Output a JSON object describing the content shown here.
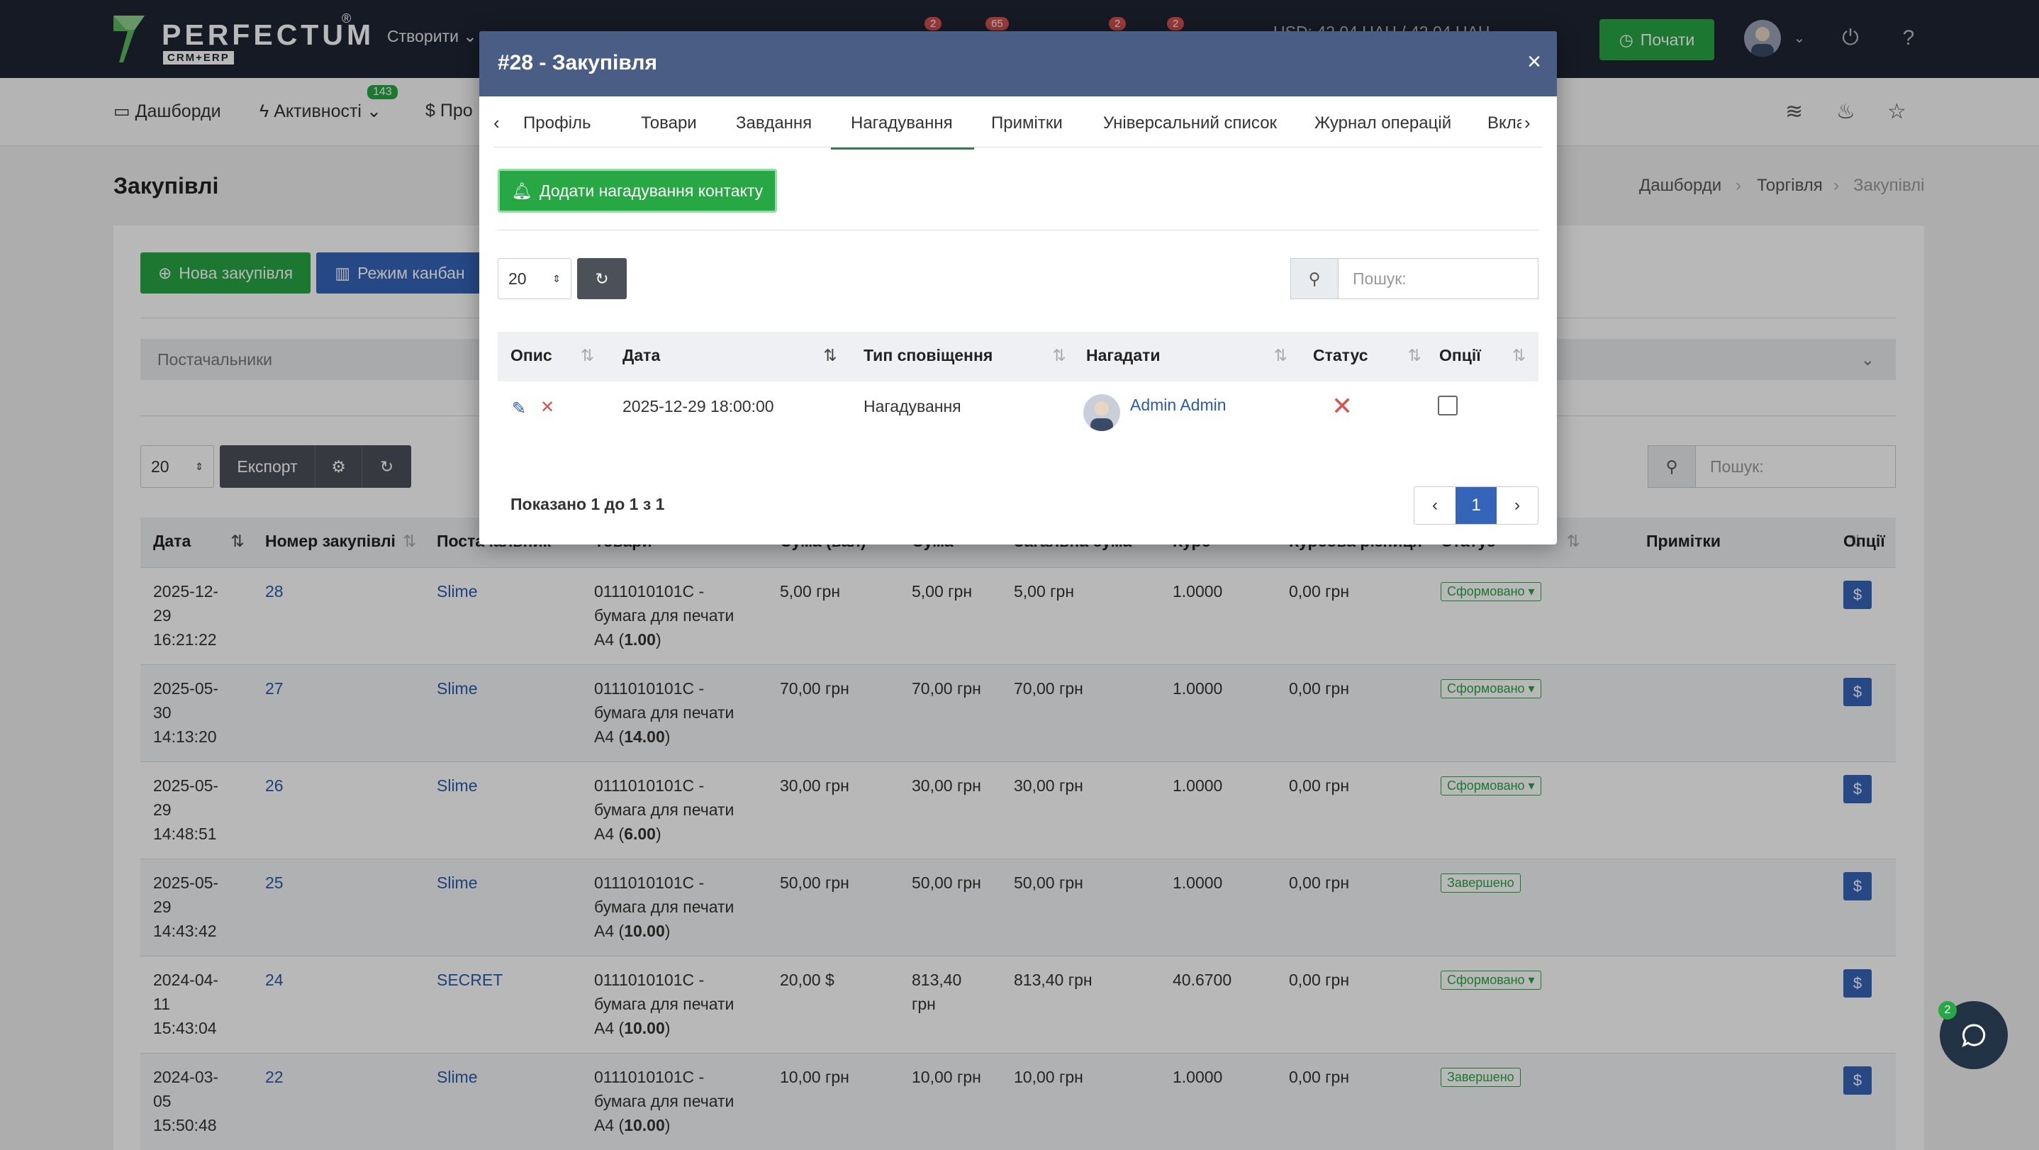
{
  "topbar": {
    "logo_text": "PERFECTUM",
    "logo_sub": "CRM+ERP",
    "create_label": "Створити",
    "badges": [
      "2",
      "65",
      "2",
      "2"
    ],
    "currency": "USD: 42,04 UAH / 42,04 UAH",
    "start_label": "Почати"
  },
  "subnav": {
    "items": [
      "Дашборди",
      "Активності",
      "Про"
    ],
    "activities_badge": "143"
  },
  "page": {
    "title": "Закупівлі",
    "breadcrumbs": [
      "Дашборди",
      "Торгівля",
      "Закупівлі"
    ]
  },
  "toolbar": {
    "new_purchase": "Нова закупівля",
    "kanban": "Режим канбан",
    "filter_placeholder": "Постачальники",
    "page_size": "20",
    "export": "Експорт",
    "search_placeholder": "Пошук:"
  },
  "table": {
    "headers": [
      "Дата",
      "Номер закупівлі",
      "Постачальник",
      "Товари",
      "Сума (вал)",
      "Сума",
      "Загальна сума",
      "Курс",
      "Курсова різниця",
      "Статус",
      "Примітки",
      "Опції"
    ],
    "rows": [
      {
        "date": [
          "2025-12-",
          "29",
          "16:21:22"
        ],
        "num": "28",
        "supplier": "Slime",
        "goods": [
          "0111010101С -",
          "бумага для печати",
          "А4 ("
        ],
        "qty": "1.00",
        "sum_val": "5,00 грн",
        "sum": "5,00 грн",
        "total": "5,00 грн",
        "rate": "1.0000",
        "diff": "0,00 грн",
        "status": "Сформовано ▾"
      },
      {
        "date": [
          "2025-05-",
          "30",
          "14:13:20"
        ],
        "num": "27",
        "supplier": "Slime",
        "goods": [
          "0111010101С -",
          "бумага для печати",
          "А4 ("
        ],
        "qty": "14.00",
        "sum_val": "70,00 грн",
        "sum": "70,00 грн",
        "total": "70,00 грн",
        "rate": "1.0000",
        "diff": "0,00 грн",
        "status": "Сформовано ▾"
      },
      {
        "date": [
          "2025-05-",
          "29",
          "14:48:51"
        ],
        "num": "26",
        "supplier": "Slime",
        "goods": [
          "0111010101С -",
          "бумага для печати",
          "А4 ("
        ],
        "qty": "6.00",
        "sum_val": "30,00 грн",
        "sum": "30,00 грн",
        "total": "30,00 грн",
        "rate": "1.0000",
        "diff": "0,00 грн",
        "status": "Сформовано ▾"
      },
      {
        "date": [
          "2025-05-",
          "29",
          "14:43:42"
        ],
        "num": "25",
        "supplier": "Slime",
        "goods": [
          "0111010101С -",
          "бумага для печати",
          "А4 ("
        ],
        "qty": "10.00",
        "sum_val": "50,00 грн",
        "sum": "50,00 грн",
        "total": "50,00 грн",
        "rate": "1.0000",
        "diff": "0,00 грн",
        "status": "Завершено"
      },
      {
        "date": [
          "2024-04-",
          "11",
          "15:43:04"
        ],
        "num": "24",
        "supplier": "SECRET",
        "goods": [
          "0111010101С -",
          "бумага для печати",
          "А4 ("
        ],
        "qty": "10.00",
        "sum_val": "20,00 $",
        "sum": "813,40 грн",
        "total": "813,40 грн",
        "rate": "40.6700",
        "diff": "0,00 грн",
        "status": "Сформовано ▾"
      },
      {
        "date": [
          "2024-03-",
          "05",
          "15:50:48"
        ],
        "num": "22",
        "supplier": "Slime",
        "goods": [
          "0111010101С -",
          "бумага для печати",
          "А4 ("
        ],
        "qty": "10.00",
        "sum_val": "10,00 грн",
        "sum": "10,00 грн",
        "total": "10,00 грн",
        "rate": "1.0000",
        "diff": "0,00 грн",
        "status": "Завершено"
      }
    ],
    "dollar": "$"
  },
  "modal": {
    "title": "#28 - Закупівля",
    "close": "×",
    "tabs": [
      "Профіль",
      "Товари",
      "Завдання",
      "Нагадування",
      "Примітки",
      "Універсальний список",
      "Журнал операцій",
      "Вкладе"
    ],
    "add_button": "Додати нагадування контакту",
    "page_size": "20",
    "search_placeholder": "Пошук:",
    "headers": [
      "Опис",
      "Дата",
      "Тип сповіщення",
      "Нагадати",
      "Статус",
      "Опції"
    ],
    "row": {
      "date": "2025-12-29 18:00:00",
      "type": "Нагадування",
      "remind": "Admin Admin"
    },
    "summary": "Показано 1 до 1 з 1",
    "page": "1"
  },
  "chat": {
    "badge": "2"
  },
  "colors": {
    "green": "#28a745",
    "blue": "#3565b8",
    "modal_header": "#4a5d84",
    "topbar": "#1e2433"
  }
}
